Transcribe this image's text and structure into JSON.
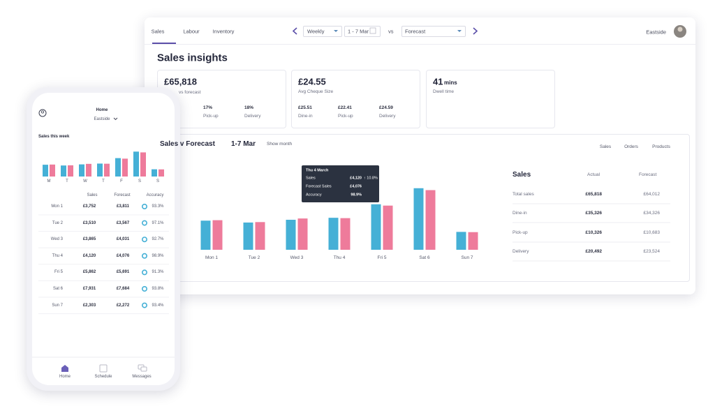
{
  "nav": {
    "tabs": [
      "Sales",
      "Labour",
      "Inventory"
    ],
    "period": "Weekly",
    "range": "1 - 7 Mar",
    "vs": "vs",
    "compare": "Forecast",
    "location": "Eastside"
  },
  "page_title": "Sales insights",
  "kpis": [
    {
      "value": "£65,818",
      "caption": "vs forecast",
      "breakdown": [
        {
          "value": "17%",
          "label": "Pick-up"
        },
        {
          "value": "18%",
          "label": "Delivery"
        }
      ]
    },
    {
      "value": "£24.55",
      "caption": "Avg Cheque Size",
      "breakdown": [
        {
          "value": "£25.51",
          "label": "Dine-in"
        },
        {
          "value": "£22.41",
          "label": "Pick-up"
        },
        {
          "value": "£24.59",
          "label": "Delivery"
        }
      ]
    },
    {
      "value": "41",
      "unit": "mins",
      "caption": "Dwell time"
    }
  ],
  "chart_data": [
    {
      "type": "bar",
      "title": "Sales v Forecast",
      "subtitle": "1-7 Mar",
      "link": "Show month",
      "categories": [
        "Mon 1",
        "Tue 2",
        "Wed 3",
        "Thu 4",
        "Fri 5",
        "Sat 6",
        "Sun 7"
      ],
      "series": [
        {
          "name": "Actual",
          "color": "#45b0d6",
          "values": [
            3752,
            3510,
            3865,
            4120,
            5862,
            7931,
            2303
          ]
        },
        {
          "name": "Forecast",
          "color": "#ee7b9b",
          "values": [
            3811,
            3567,
            4031,
            4076,
            5691,
            7684,
            2272
          ]
        }
      ],
      "ylim": [
        0,
        8000
      ]
    },
    {
      "type": "bar",
      "categories": [
        "M",
        "T",
        "W",
        "T",
        "F",
        "S",
        "S"
      ],
      "series": [
        {
          "color": "#45b0d6",
          "values": [
            3752,
            3510,
            3865,
            4120,
            5862,
            7931,
            2303
          ]
        },
        {
          "color": "#ee7b9b",
          "values": [
            3811,
            3567,
            4031,
            4076,
            5691,
            7684,
            2272
          ]
        }
      ],
      "ylim": [
        0,
        8000
      ]
    }
  ],
  "tooltip": {
    "title": "Thu 4 March",
    "rows": [
      [
        "Sales",
        "£4,120",
        "↑ 10.8%"
      ],
      [
        "Forecast Sales",
        "£4,076"
      ],
      [
        "Accuracy",
        "98.9%"
      ]
    ]
  },
  "tabs": [
    "Sales",
    "Orders",
    "Products"
  ],
  "summary": {
    "title": "Sales",
    "rows": [
      [
        "Total sales",
        "£65,818",
        "£64,012"
      ],
      [
        "Dine-in",
        "£35,326",
        "£34,326"
      ],
      [
        "Pick-up",
        "£10,326",
        "£10,683"
      ],
      [
        "Delivery",
        "£20,492",
        "£23,524"
      ]
    ]
  },
  "phone": {
    "header": "Home",
    "location": "Eastside",
    "section": "Sales this week",
    "columns": [
      "Sales",
      "Forecast",
      "Accuracy"
    ],
    "rows": [
      [
        "Mon 1",
        "£3,752",
        "£3,811",
        "93.3%"
      ],
      [
        "Tue 2",
        "£3,510",
        "£3,567",
        "97.1%"
      ],
      [
        "Wed 3",
        "£3,865",
        "£4,031",
        "92.7%"
      ],
      [
        "Thu 4",
        "£4,120",
        "£4,076",
        "98.9%"
      ],
      [
        "Fri 5",
        "£5,862",
        "£5,691",
        "91.3%"
      ],
      [
        "Sat 6",
        "£7,931",
        "£7,684",
        "93.8%"
      ],
      [
        "Sun 7",
        "£2,303",
        "£2,272",
        "93.4%"
      ]
    ],
    "nav": [
      "Home",
      "Schedule",
      "Messages"
    ]
  }
}
